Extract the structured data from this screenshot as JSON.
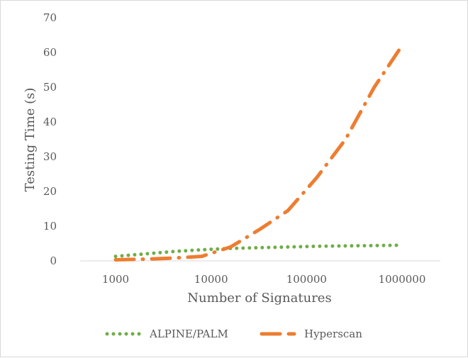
{
  "chart_data": {
    "type": "line",
    "title": "",
    "xlabel": "Number of Signatures",
    "ylabel": "Testing Time (s)",
    "x_scale": "log",
    "xlim": [
      1000,
      1000000
    ],
    "ylim": [
      0,
      70
    ],
    "x_ticks": [
      "1000",
      "10000",
      "100000",
      "1000000"
    ],
    "y_ticks": [
      "0",
      "10",
      "20",
      "30",
      "40",
      "50",
      "60",
      "70"
    ],
    "grid": false,
    "legend_position": "bottom",
    "series": [
      {
        "name": "ALPINE/PALM",
        "color": "#70ad47",
        "style": "dotted",
        "x": [
          1000,
          2000,
          4000,
          8000,
          16000,
          32000,
          64000,
          128000,
          256000,
          512000,
          1000000
        ],
        "y": [
          1.3,
          2.0,
          2.7,
          3.2,
          3.6,
          3.8,
          4.0,
          4.2,
          4.3,
          4.4,
          4.5
        ]
      },
      {
        "name": "Hyperscan",
        "color": "#ed7d31",
        "style": "long-dash",
        "x": [
          1000,
          2000,
          4000,
          8000,
          16000,
          32000,
          64000,
          128000,
          256000,
          512000,
          1000000
        ],
        "y": [
          0.3,
          0.5,
          0.8,
          1.3,
          4.0,
          9.0,
          14.5,
          24.0,
          35.0,
          50.0,
          62.0
        ]
      }
    ]
  }
}
